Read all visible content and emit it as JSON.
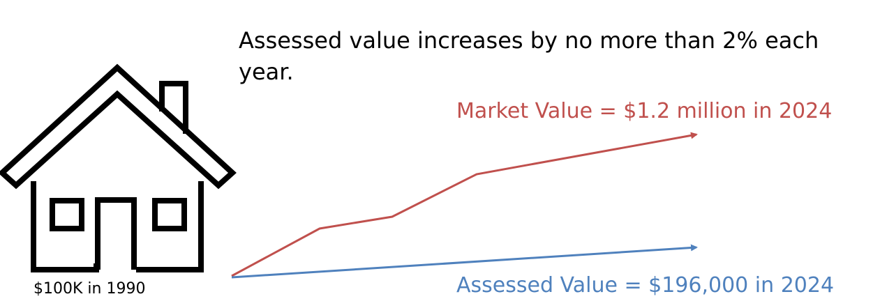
{
  "headline": "Assessed value increases by no more than 2% each year.",
  "house": {
    "icon": "house-icon",
    "caption": "$100K in 1990"
  },
  "market": {
    "label": "Market Value = $1.2 million in 2024",
    "color": "#C0504D"
  },
  "assessed": {
    "label": "Assessed Value = $196,000 in 2024",
    "color": "#4F81BD"
  }
}
